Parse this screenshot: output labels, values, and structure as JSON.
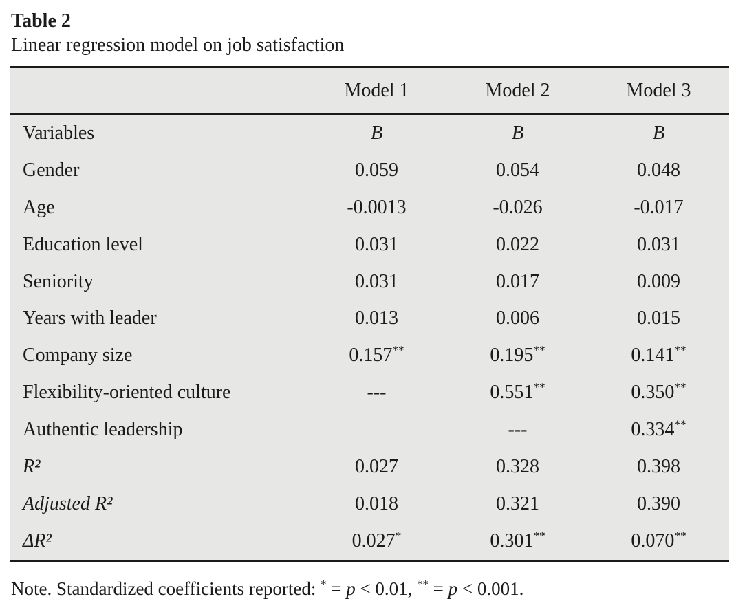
{
  "title": "Table 2",
  "subtitle": "Linear regression model on job satisfaction",
  "table": {
    "column_headers": [
      "",
      "Model 1",
      "Model 2",
      "Model 3"
    ],
    "rows": [
      {
        "label": "Variables",
        "values": [
          "B",
          "B",
          "B"
        ],
        "italic_values": true
      },
      {
        "label": "Gender",
        "values": [
          "0.059",
          "0.054",
          "0.048"
        ]
      },
      {
        "label": "Age",
        "values": [
          "-0.0013",
          "-0.026",
          "-0.017"
        ]
      },
      {
        "label": "Education level",
        "values": [
          "0.031",
          "0.022",
          "0.031"
        ]
      },
      {
        "label": "Seniority",
        "values": [
          "0.031",
          "0.017",
          "0.009"
        ]
      },
      {
        "label": "Years with leader",
        "values": [
          "0.013",
          "0.006",
          "0.015"
        ]
      },
      {
        "label": "Company size",
        "values": [
          "0.157**",
          "0.195**",
          "0.141**"
        ]
      },
      {
        "label": "Flexibility-oriented culture",
        "values": [
          "---",
          "0.551**",
          "0.350**"
        ]
      },
      {
        "label": "Authentic leadership",
        "values": [
          "",
          "---",
          "0.334**"
        ]
      },
      {
        "label": "R²",
        "values": [
          "0.027",
          "0.328",
          "0.398"
        ],
        "italic_label": true
      },
      {
        "label": "Adjusted R²",
        "values": [
          "0.018",
          "0.321",
          "0.390"
        ],
        "italic_label": true
      },
      {
        "label": "ΔR²",
        "values": [
          "0.027*",
          "0.301**",
          "0.070**"
        ],
        "italic_label": true
      }
    ]
  },
  "note_full": "Note. Standardized coefficients reported: * = p < 0.01, ** = p < 0.001.",
  "note_segments": [
    {
      "text": "Note. Standardized coefficients reported: "
    },
    {
      "text": "*",
      "sup": true
    },
    {
      "text": " = "
    },
    {
      "text": "p",
      "italic": true
    },
    {
      "text": " < 0.01, "
    },
    {
      "text": "**",
      "sup": true
    },
    {
      "text": " = "
    },
    {
      "text": "p",
      "italic": true
    },
    {
      "text": " < 0.001."
    }
  ],
  "colors": {
    "table_background": "#e7e7e6",
    "rule": "#1a1a1a",
    "text": "#1b1b1b",
    "page_background": "#ffffff"
  }
}
